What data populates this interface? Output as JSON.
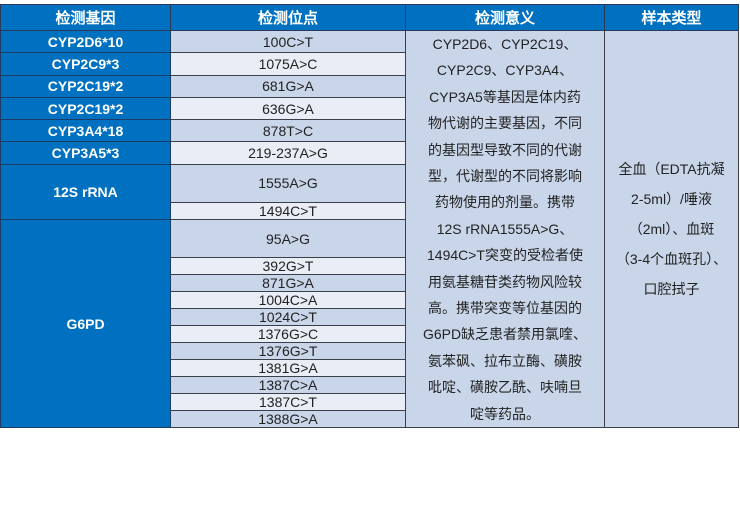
{
  "headers": [
    "检测基因",
    "检测位点",
    "检测意义",
    "样本类型"
  ],
  "rows": [
    {
      "gene": "CYP2D6*10",
      "site": "100C>T"
    },
    {
      "gene": "CYP2C9*3",
      "site": "1075A>C"
    },
    {
      "gene": "CYP2C19*2",
      "site": "681G>A"
    },
    {
      "gene": "CYP2C19*2",
      "site": "636G>A"
    },
    {
      "gene": "CYP3A4*18",
      "site": "878T>C"
    },
    {
      "gene": "CYP3A5*3",
      "site": "219-237A>G"
    },
    {
      "gene": "12S rRNA",
      "site": "1555A>G"
    },
    {
      "gene": "",
      "site": "1494C>T"
    },
    {
      "gene": "G6PD",
      "site": "95A>G"
    },
    {
      "gene": "",
      "site": "392G>T"
    },
    {
      "gene": "",
      "site": "871G>A"
    },
    {
      "gene": "",
      "site": "1004C>A"
    },
    {
      "gene": "",
      "site": "1024C>T"
    },
    {
      "gene": "",
      "site": "1376G>C"
    },
    {
      "gene": "",
      "site": "1376G>T"
    },
    {
      "gene": "",
      "site": "1381G>A"
    },
    {
      "gene": "",
      "site": "1387C>A"
    },
    {
      "gene": "",
      "site": "1387C>T"
    },
    {
      "gene": "",
      "site": "1388G>A"
    }
  ],
  "meaning_lines": [
    "CYP2D6、CYP2C19、",
    "CYP2C9、CYP3A4、",
    "CYP3A5等基因是体内药",
    "物代谢的主要基因，不同",
    "的基因型导致不同的代谢",
    "型，代谢型的不同将影响",
    "药物使用的剂量。携带",
    "12S rRNA1555A>G、",
    "1494C>T突变的受检者使",
    "用氨基糖苷类药物风险较",
    "高。携带突变等位基因的",
    "G6PD缺乏患者禁用氯喹、",
    "氨苯砜、拉布立酶、磺胺",
    "吡啶、磺胺乙酰、呋喃旦",
    "啶等药品。"
  ],
  "sample_lines": [
    "全血（EDTA抗凝",
    "2-5ml）/唾液",
    "（2ml）、血斑",
    "（3-4个血斑孔）、",
    "口腔拭子"
  ],
  "colors": {
    "header": "#0070C0",
    "row_dark": "#C9D6EA",
    "row_light": "#E9EDF5"
  }
}
